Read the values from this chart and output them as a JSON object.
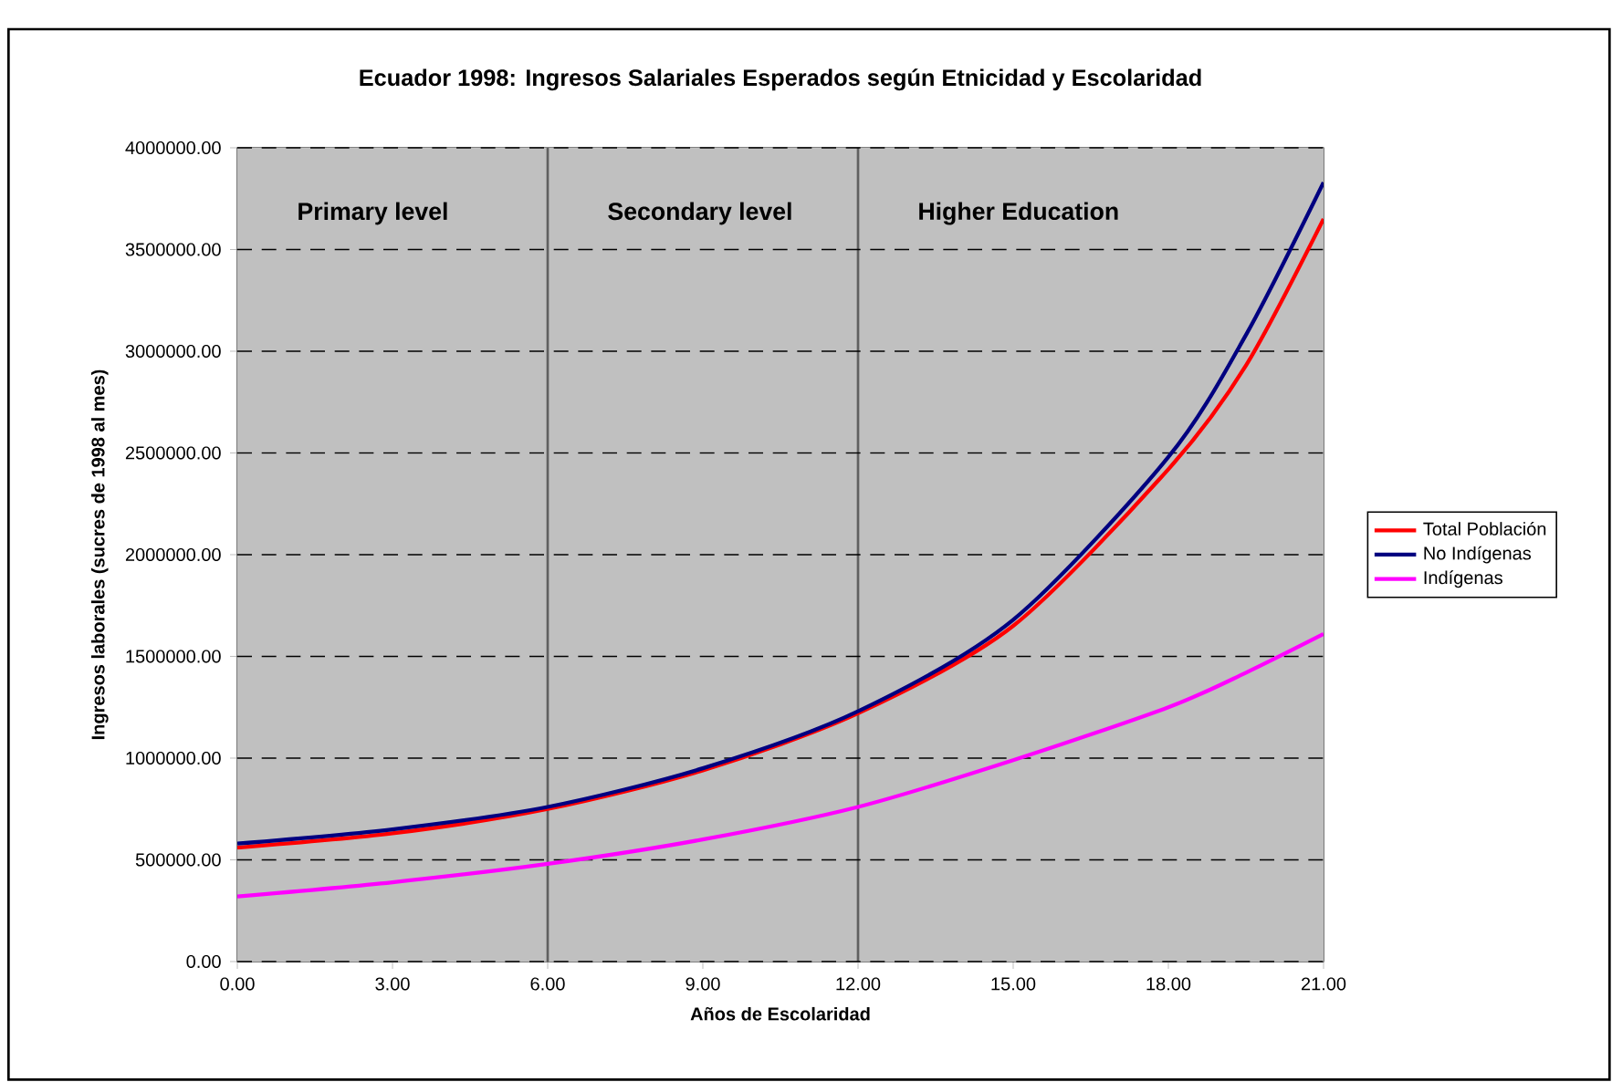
{
  "chart_data": {
    "type": "line",
    "title": "Ecuador 1998: Ingresos Salariales Esperados según Etnicidad y Escolaridad",
    "xlabel": "Años de Escolaridad",
    "ylabel": "Ingresos laborales (sucres de 1998 al mes)",
    "x": [
      0,
      3,
      6,
      9,
      12,
      15,
      18,
      19.5,
      21
    ],
    "series": [
      {
        "name": "Total Población",
        "color": "#ff0000",
        "values": [
          560000,
          630000,
          750000,
          940000,
          1220000,
          1650000,
          2420000,
          2930000,
          3650000
        ]
      },
      {
        "name": "No Indígenas",
        "color": "#000080",
        "values": [
          580000,
          650000,
          760000,
          950000,
          1230000,
          1680000,
          2480000,
          3080000,
          3830000
        ]
      },
      {
        "name": "Indígenas",
        "color": "#ff00ff",
        "values": [
          320000,
          390000,
          480000,
          600000,
          760000,
          990000,
          1250000,
          1420000,
          1610000
        ]
      }
    ],
    "xlim": [
      0,
      21
    ],
    "ylim": [
      0,
      4000000
    ],
    "xticks": [
      {
        "value": 0,
        "label": "0.00"
      },
      {
        "value": 3,
        "label": "3.00"
      },
      {
        "value": 6,
        "label": "6.00"
      },
      {
        "value": 9,
        "label": "9.00"
      },
      {
        "value": 12,
        "label": "12.00"
      },
      {
        "value": 15,
        "label": "15.00"
      },
      {
        "value": 18,
        "label": "18.00"
      },
      {
        "value": 21,
        "label": "21.00"
      }
    ],
    "yticks": [
      {
        "value": 0,
        "label": "0.00"
      },
      {
        "value": 500000,
        "label": "500000.00"
      },
      {
        "value": 1000000,
        "label": "1000000.00"
      },
      {
        "value": 1500000,
        "label": "1500000.00"
      },
      {
        "value": 2000000,
        "label": "2000000.00"
      },
      {
        "value": 2500000,
        "label": "2500000.00"
      },
      {
        "value": 3000000,
        "label": "3000000.00"
      },
      {
        "value": 3500000,
        "label": "3500000.00"
      },
      {
        "value": 4000000,
        "label": "4000000.00"
      }
    ],
    "bands": [
      {
        "axis": "x",
        "from": 0,
        "to": 6,
        "label": "Primary level",
        "color": "#c0c0c0"
      },
      {
        "axis": "x",
        "from": 6,
        "to": 12,
        "label": "Secondary level",
        "color": "#c0c0c0"
      },
      {
        "axis": "x",
        "from": 12,
        "to": 21,
        "label": "Higher Education",
        "color": "#c0c0c0"
      }
    ],
    "ref_lines": [
      {
        "axis": "x",
        "value": 6,
        "color": "#606060"
      },
      {
        "axis": "x",
        "value": 12,
        "color": "#606060"
      }
    ],
    "grid": "y",
    "legend": "right",
    "marker": "none",
    "line_style": "solid"
  }
}
